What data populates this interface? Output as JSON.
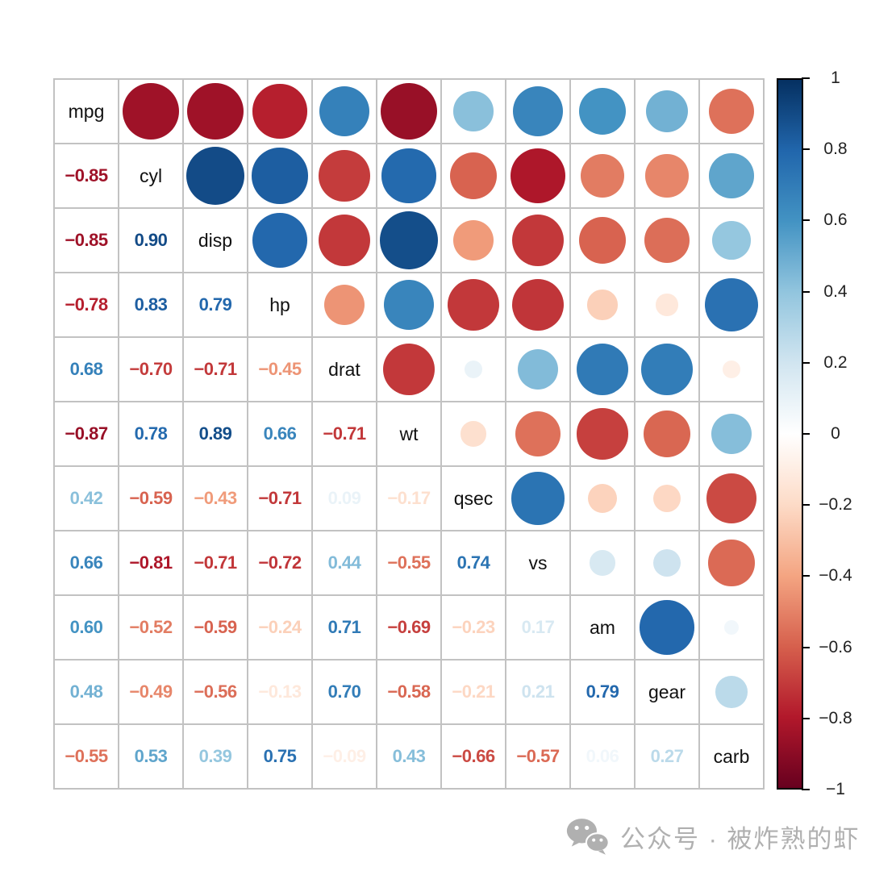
{
  "chart_data": {
    "type": "heatmap",
    "subtype": "correlation-matrix",
    "dataset_hint": "mtcars",
    "variables": [
      "mpg",
      "cyl",
      "disp",
      "hp",
      "drat",
      "wt",
      "qsec",
      "vs",
      "am",
      "gear",
      "carb"
    ],
    "lower_triangle": [
      [
        -0.85
      ],
      [
        -0.85,
        0.9
      ],
      [
        -0.78,
        0.83,
        0.79
      ],
      [
        0.68,
        -0.7,
        -0.71,
        -0.45
      ],
      [
        -0.87,
        0.78,
        0.89,
        0.66,
        -0.71
      ],
      [
        0.42,
        -0.59,
        -0.43,
        -0.71,
        0.09,
        -0.17
      ],
      [
        0.66,
        -0.81,
        -0.71,
        -0.72,
        0.44,
        -0.55,
        0.74
      ],
      [
        0.6,
        -0.52,
        -0.59,
        -0.24,
        0.71,
        -0.69,
        -0.23,
        0.17
      ],
      [
        0.48,
        -0.49,
        -0.56,
        -0.13,
        0.7,
        -0.58,
        -0.21,
        0.21,
        0.79
      ],
      [
        -0.55,
        0.53,
        0.39,
        0.75,
        -0.09,
        0.43,
        -0.66,
        -0.57,
        0.06,
        0.27
      ]
    ],
    "display": {
      "lower": "number",
      "upper": "circle",
      "diagonal": "variable-name",
      "circle_diameter_rule": "sqrt(abs(r)) * cell",
      "grid": "on"
    },
    "value_range": [
      -1,
      1
    ],
    "palette_red_to_blue": [
      "#67001F",
      "#B2182B",
      "#D6604D",
      "#F4A582",
      "#FDDBC7",
      "#FFFFFF",
      "#D1E5F0",
      "#92C5DE",
      "#4393C3",
      "#2166AC",
      "#053061"
    ]
  },
  "colorbar": {
    "position": "right",
    "max": 1,
    "min": -1,
    "tick_labels": [
      "1",
      "0.8",
      "0.6",
      "0.4",
      "0.2",
      "0",
      "−0.2",
      "−0.4",
      "−0.6",
      "−0.8",
      "−1"
    ]
  },
  "watermark": {
    "icon": "wechat-icon",
    "text": "公众号 · 被炸熟的虾"
  },
  "style": {
    "background": "#ffffff",
    "grid_line_color": "#c2c2c2",
    "variable_label_color": "#111111",
    "colorbar_border_color": "#000000",
    "tick_label_color": "#222222",
    "watermark_color": "#b0b0b0"
  }
}
